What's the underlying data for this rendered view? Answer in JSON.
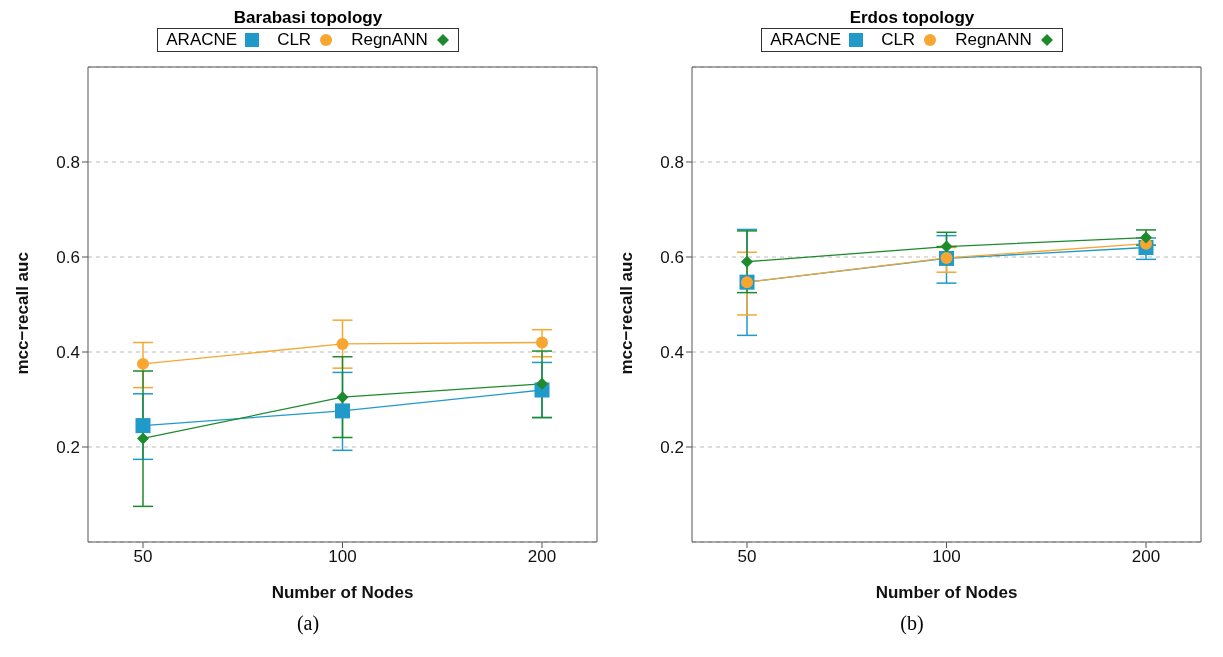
{
  "chart_data": [
    {
      "type": "line",
      "title": "Barabasi topology",
      "xlabel": "Number of Nodes",
      "ylabel": "mcc−recall auc",
      "categories": [
        "50",
        "100",
        "200"
      ],
      "ylim": [
        0,
        1
      ],
      "yticks": [
        0.2,
        0.4,
        0.6,
        0.8
      ],
      "grid": "y",
      "legend": "top",
      "line_style": "solid",
      "annotations": [
        "(a)"
      ],
      "series": [
        {
          "name": "ARACNE",
          "color": "#1f9ac9",
          "marker": "square",
          "values": [
            0.245,
            0.276,
            0.32
          ],
          "errors": [
            [
              0.174,
              0.312
            ],
            [
              0.193,
              0.357
            ],
            [
              0.262,
              0.378
            ]
          ]
        },
        {
          "name": "CLR",
          "color": "#f7a731",
          "marker": "circle",
          "values": [
            0.375,
            0.417,
            0.42
          ],
          "errors": [
            [
              0.325,
              0.42
            ],
            [
              0.366,
              0.467
            ],
            [
              0.39,
              0.447
            ]
          ]
        },
        {
          "name": "RegnANN",
          "color": "#1e8a2e",
          "marker": "diamond",
          "values": [
            0.218,
            0.305,
            0.333
          ],
          "errors": [
            [
              0.075,
              0.36
            ],
            [
              0.22,
              0.39
            ],
            [
              0.262,
              0.402
            ]
          ]
        }
      ]
    },
    {
      "type": "line",
      "title": "Erdos topology",
      "xlabel": "Number of Nodes",
      "ylabel": "mcc−recall auc",
      "categories": [
        "50",
        "100",
        "200"
      ],
      "ylim": [
        0,
        1
      ],
      "yticks": [
        0.2,
        0.4,
        0.6,
        0.8
      ],
      "grid": "y",
      "legend": "top",
      "line_style": "solid",
      "annotations": [
        "(b)"
      ],
      "series": [
        {
          "name": "ARACNE",
          "color": "#1f9ac9",
          "marker": "square",
          "values": [
            0.547,
            0.597,
            0.62
          ],
          "errors": [
            [
              0.435,
              0.658
            ],
            [
              0.545,
              0.645
            ],
            [
              0.595,
              0.64
            ]
          ]
        },
        {
          "name": "CLR",
          "color": "#f7a731",
          "marker": "circle",
          "values": [
            0.547,
            0.598,
            0.628
          ],
          "errors": [
            [
              0.478,
              0.61
            ],
            [
              0.568,
              0.62
            ],
            null
          ]
        },
        {
          "name": "RegnANN",
          "color": "#1e8a2e",
          "marker": "diamond",
          "values": [
            0.59,
            0.622,
            0.641
          ],
          "errors": [
            [
              0.525,
              0.655
            ],
            [
              0.622,
              0.652
            ],
            [
              0.625,
              0.657
            ]
          ]
        }
      ]
    }
  ]
}
